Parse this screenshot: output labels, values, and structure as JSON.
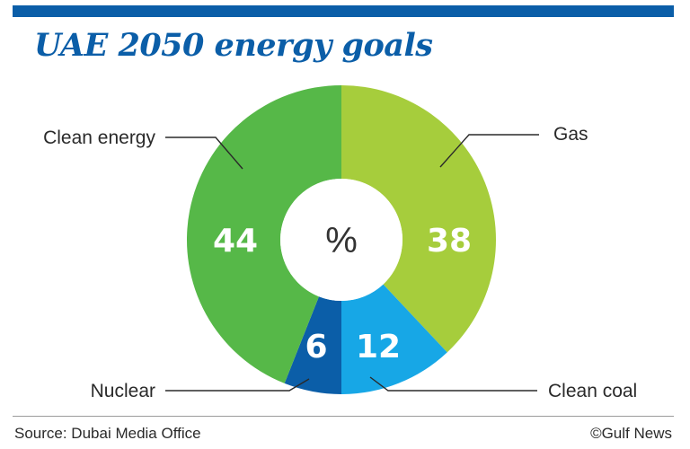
{
  "title": "UAE 2050 energy goals",
  "source": "Source: Dubai Media Office",
  "credit": "©Gulf News",
  "chart_data": {
    "type": "pie",
    "center_label": "%",
    "slices": [
      {
        "name": "Gas",
        "value": 38,
        "color": "#a6cd3c"
      },
      {
        "name": "Clean coal",
        "value": 12,
        "color": "#17a7e6"
      },
      {
        "name": "Nuclear",
        "value": 6,
        "color": "#0b5ea8"
      },
      {
        "name": "Clean energy",
        "value": 44,
        "color": "#56b848"
      }
    ]
  }
}
